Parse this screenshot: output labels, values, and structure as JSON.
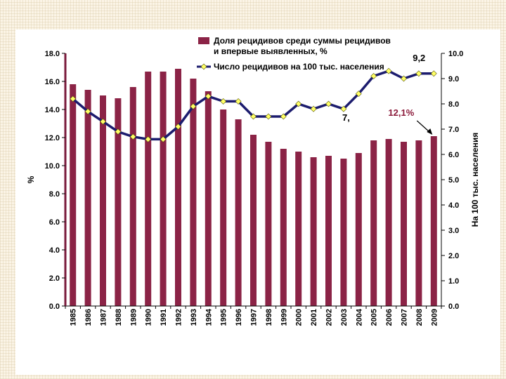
{
  "chart_data": {
    "type": "bar",
    "categories": [
      "1985",
      "1986",
      "1987",
      "1988",
      "1989",
      "1990",
      "1991",
      "1992",
      "1993",
      "1994",
      "1995",
      "1996",
      "1997",
      "1998",
      "1999",
      "2000",
      "2001",
      "2002",
      "2003",
      "2004",
      "2005",
      "2006",
      "2007",
      "2008",
      "2009"
    ],
    "series": [
      {
        "name": "Доля рецидивов среди суммы рецидивов и впервые выявленных, %",
        "type": "bar",
        "axis": "left",
        "color": "#8b2346",
        "values": [
          15.8,
          15.4,
          15.0,
          14.8,
          15.6,
          16.7,
          16.7,
          16.9,
          16.2,
          15.3,
          14.0,
          13.3,
          12.2,
          11.7,
          11.2,
          11.0,
          10.6,
          10.7,
          10.5,
          10.9,
          11.8,
          11.9,
          11.7,
          11.8,
          12.1
        ]
      },
      {
        "name": "Число рецидивов на 100 тыс. населения",
        "type": "line",
        "axis": "right",
        "color": "#1c1c6e",
        "marker_color": "#ffff66",
        "values": [
          8.2,
          7.7,
          7.3,
          6.9,
          6.7,
          6.6,
          6.6,
          7.1,
          7.9,
          8.3,
          8.1,
          8.1,
          7.5,
          7.5,
          7.5,
          8.0,
          7.8,
          8.0,
          7.8,
          8.4,
          9.1,
          9.3,
          9.0,
          9.2,
          9.2
        ]
      }
    ],
    "y_left": {
      "label": "%",
      "lim": [
        0,
        18
      ],
      "ticks": [
        "0.0",
        "2.0",
        "4.0",
        "6.0",
        "8.0",
        "10.0",
        "12.0",
        "14.0",
        "16.0",
        "18.0"
      ]
    },
    "y_right": {
      "label": "На 100 тыс. населения",
      "lim": [
        0,
        10
      ],
      "ticks": [
        "0.0",
        "1.0",
        "2.0",
        "3.0",
        "4.0",
        "5.0",
        "6.0",
        "7.0",
        "8.0",
        "9.0",
        "10.0"
      ]
    },
    "annotations": {
      "last_point": "9,2",
      "last_bar": "12,1%",
      "partial": "7,"
    },
    "legend_position": "top-center",
    "grid": false
  }
}
